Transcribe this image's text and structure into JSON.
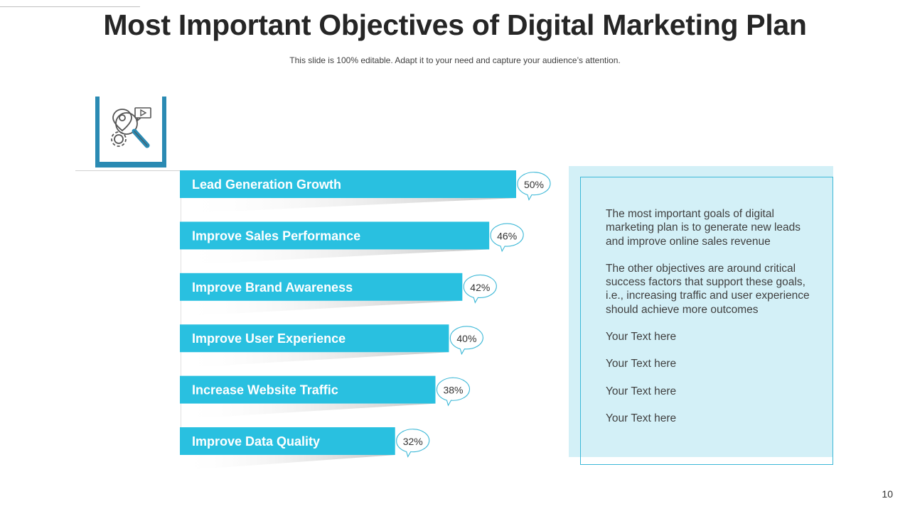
{
  "title": "Most Important Objectives of Digital Marketing Plan",
  "subtitle": "This slide is 100% editable. Adapt it to your need and capture your audience’s attention.",
  "icon": "search-marketing-icon",
  "colors": {
    "bar": "#29c0e0",
    "accent": "#2a8ab3",
    "panel_bg": "#d3f0f7",
    "panel_border": "#3cb8d7"
  },
  "chart_data": {
    "type": "bar",
    "orientation": "horizontal",
    "categories": [
      "Lead Generation Growth",
      "Improve Sales Performance",
      "Improve Brand Awareness",
      "Improve User Experience",
      "Increase Website Traffic",
      "Improve Data Quality"
    ],
    "values": [
      50,
      46,
      42,
      40,
      38,
      32
    ],
    "value_labels": [
      "50%",
      "46%",
      "42%",
      "40%",
      "38%",
      "32%"
    ],
    "unit": "%"
  },
  "panel": {
    "paragraphs": [
      "The most important goals of digital marketing plan is to generate new leads and improve online sales revenue",
      "The other objectives are around critical success factors that support these goals, i.e., increasing traffic and user experience should achieve more outcomes",
      "Your Text here",
      "Your Text here",
      "Your Text here",
      "Your Text here"
    ]
  },
  "page_number": "10"
}
